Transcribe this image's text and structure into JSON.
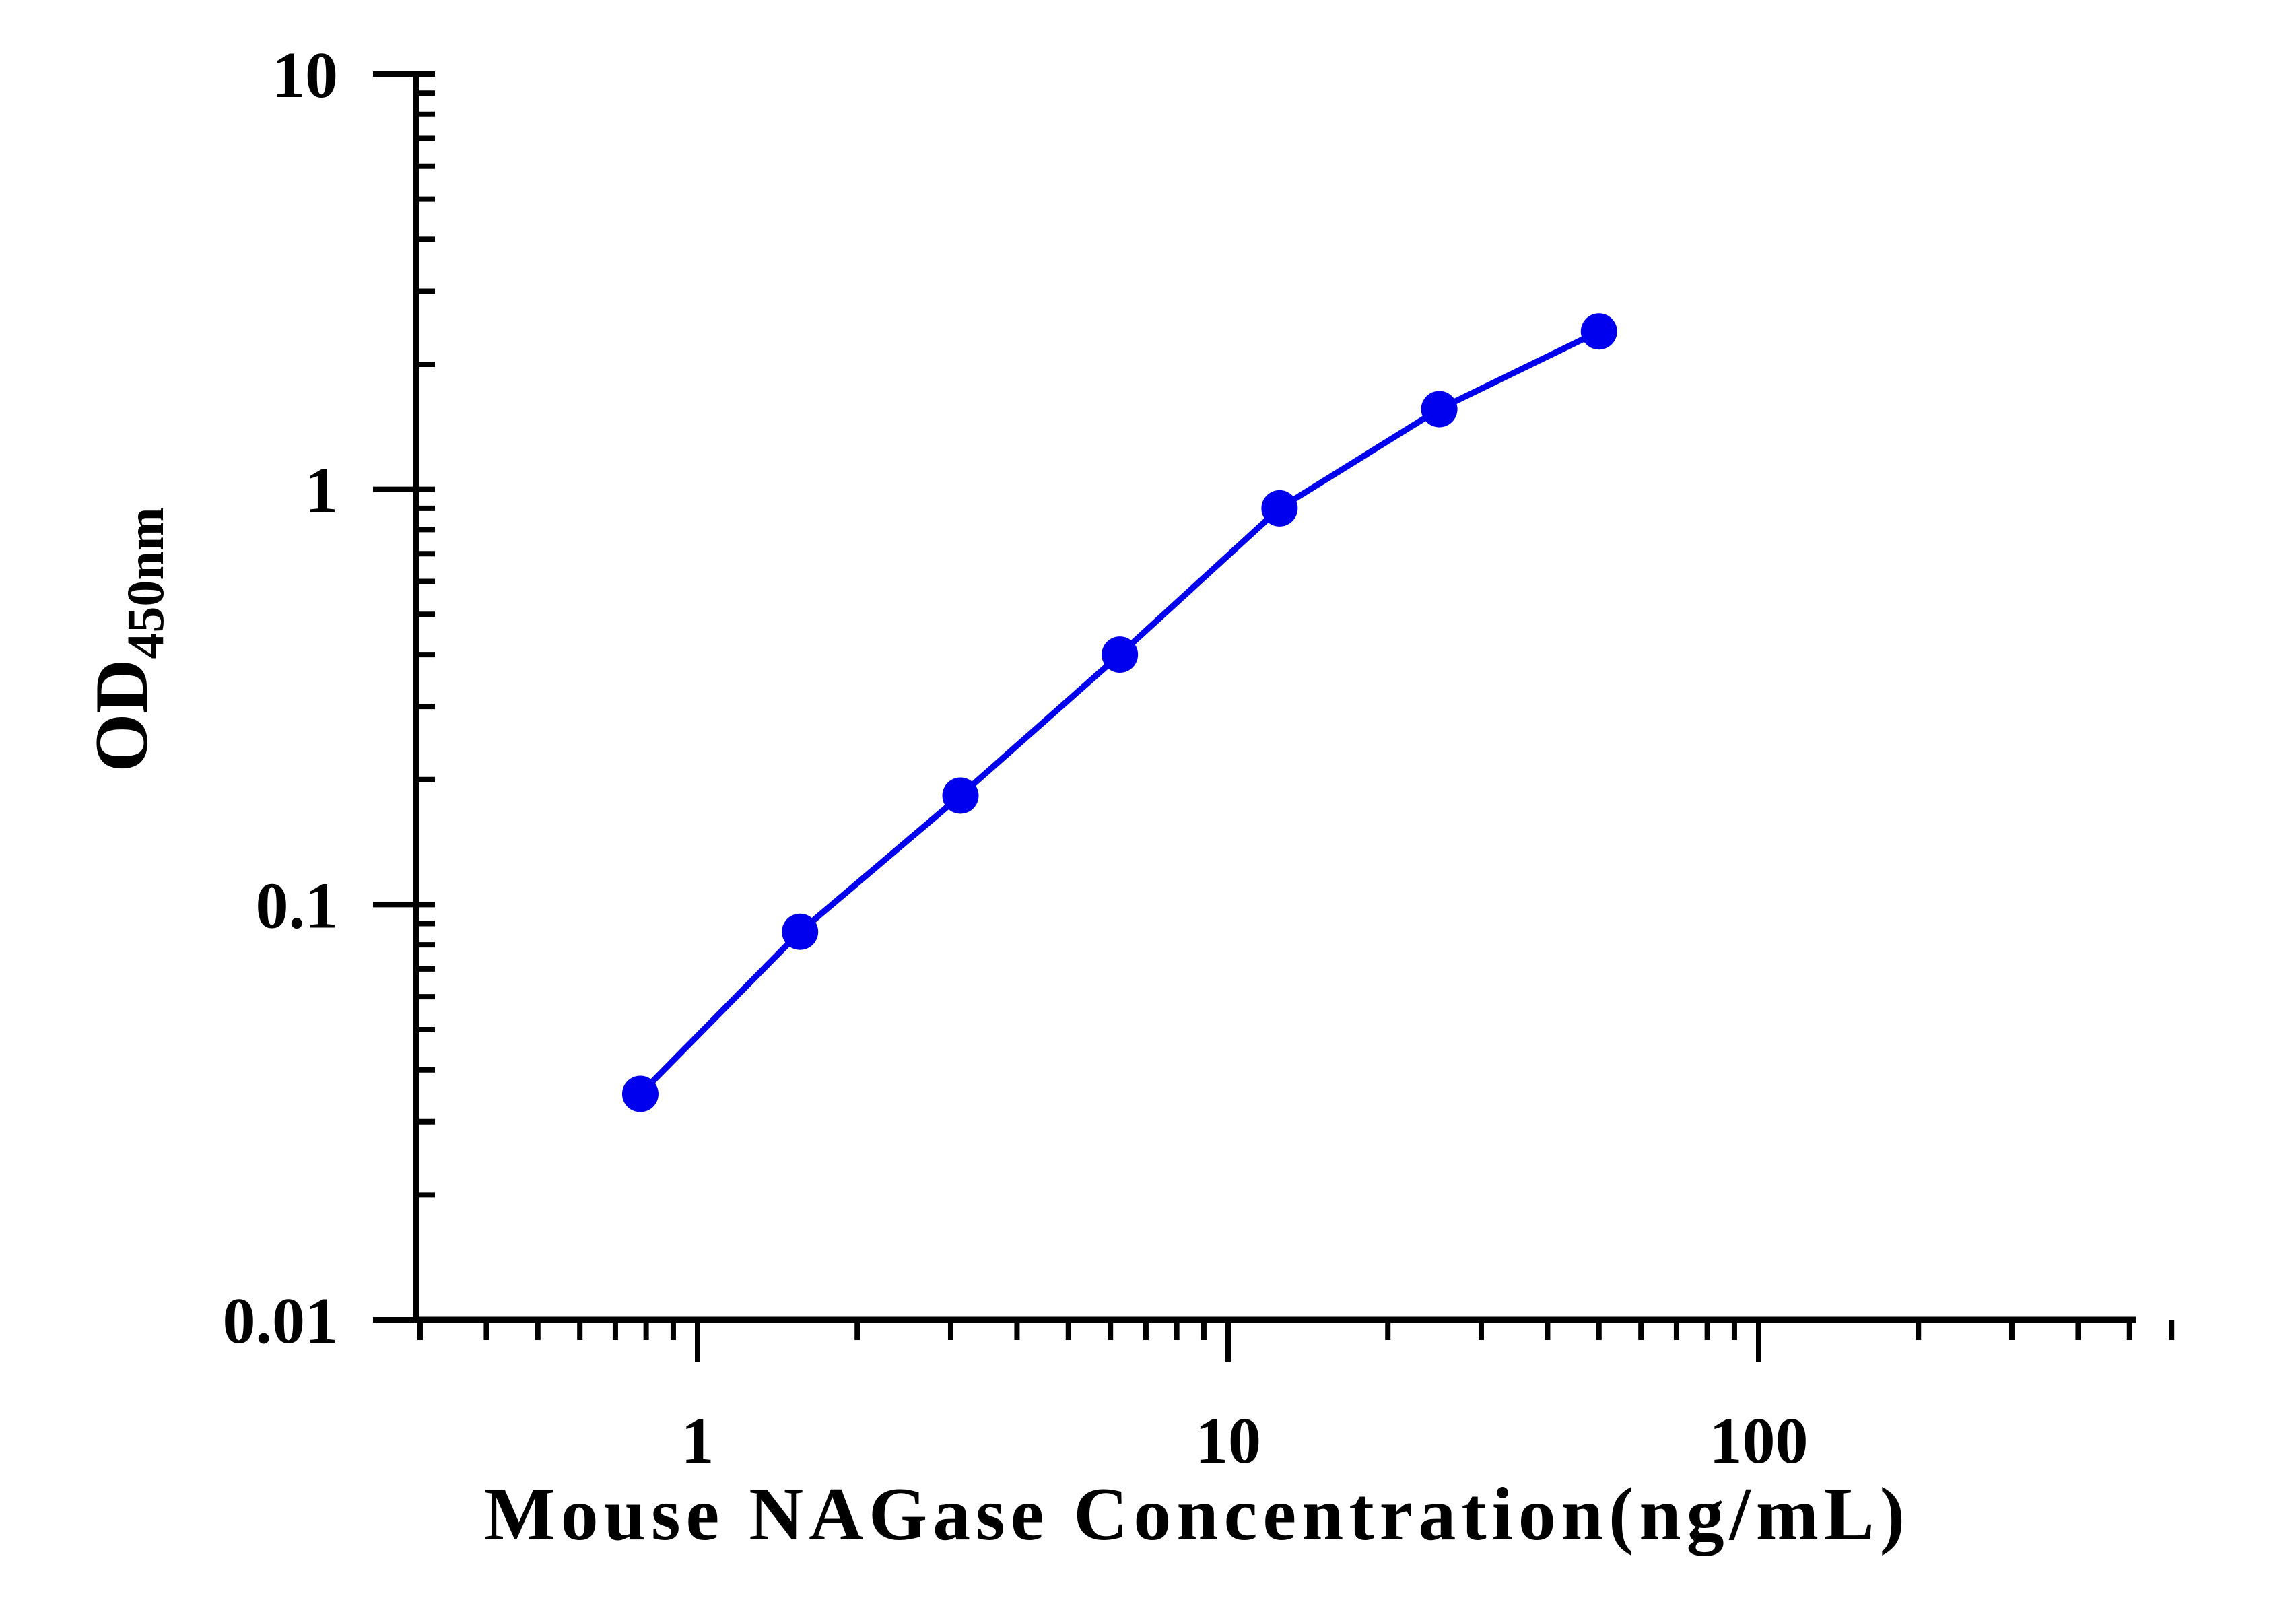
{
  "chart_data": {
    "type": "line",
    "xlabel": "Mouse NAGase Concentration(ng/mL)",
    "ylabel": "OD",
    "ylabel_subscript": "450nm",
    "x_scale": "log",
    "y_scale": "log",
    "xlim": [
      0.3,
      600
    ],
    "ylim": [
      0.01,
      10
    ],
    "x_ticks": [
      {
        "value": 1,
        "label": "1"
      },
      {
        "value": 10,
        "label": "10"
      },
      {
        "value": 100,
        "label": "100"
      }
    ],
    "y_ticks": [
      {
        "value": 10,
        "label": "10"
      },
      {
        "value": 1,
        "label": "1"
      },
      {
        "value": 0.1,
        "label": "0.1"
      },
      {
        "value": 0.01,
        "label": "0.01"
      }
    ],
    "grid": false,
    "series": [
      {
        "x": [
          0.78,
          1.56,
          3.13,
          6.25,
          12.5,
          25,
          50
        ],
        "y": [
          0.035,
          0.086,
          0.183,
          0.4,
          0.9,
          1.56,
          2.4
        ],
        "color": "#0000ee"
      }
    ]
  }
}
